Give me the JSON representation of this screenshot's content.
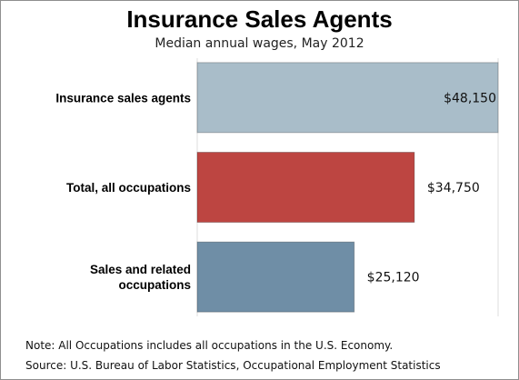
{
  "chart_data": {
    "type": "bar",
    "orientation": "horizontal",
    "title": "Insurance Sales Agents",
    "subtitle": "Median annual wages, May 2012",
    "categories": [
      [
        "Insurance sales agents"
      ],
      [
        "Total, all occupations"
      ],
      [
        "Sales and related",
        "occupations"
      ]
    ],
    "values": [
      48150,
      34750,
      25120
    ],
    "value_labels": [
      "$48,150",
      "$34,750",
      "$25,120"
    ],
    "colors": [
      "#a9bdc9",
      "#bd4541",
      "#6f8ea6"
    ],
    "xlim": [
      0,
      48150
    ],
    "grid": true
  },
  "notes": {
    "note": "Note: All Occupations includes all occupations in the U.S. Economy.",
    "source": "Source: U.S. Bureau of Labor Statistics, Occupational Employment Statistics"
  }
}
